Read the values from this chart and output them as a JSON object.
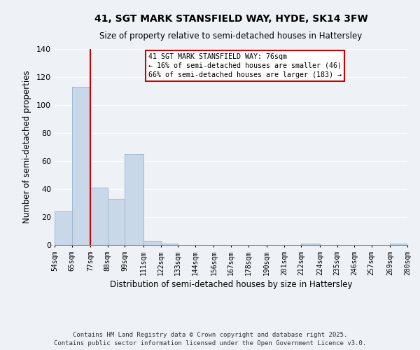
{
  "title": "41, SGT MARK STANSFIELD WAY, HYDE, SK14 3FW",
  "subtitle": "Size of property relative to semi-detached houses in Hattersley",
  "xlabel": "Distribution of semi-detached houses by size in Hattersley",
  "ylabel": "Number of semi-detached properties",
  "bins": [
    54,
    65,
    77,
    88,
    99,
    111,
    122,
    133,
    144,
    156,
    167,
    178,
    190,
    201,
    212,
    224,
    235,
    246,
    257,
    269,
    280
  ],
  "counts": [
    24,
    113,
    41,
    33,
    65,
    3,
    1,
    0,
    0,
    0,
    0,
    0,
    0,
    0,
    1,
    0,
    0,
    0,
    0,
    1
  ],
  "bar_color": "#c8d8e8",
  "bar_edge_color": "#a0b8d0",
  "property_line_x": 77,
  "annotation_title": "41 SGT MARK STANSFIELD WAY: 76sqm",
  "annotation_line1": "← 16% of semi-detached houses are smaller (46)",
  "annotation_line2": "66% of semi-detached houses are larger (183) →",
  "annotation_box_color": "#ffffff",
  "annotation_box_edge": "#cc0000",
  "vline_color": "#cc0000",
  "ylim": [
    0,
    140
  ],
  "yticks": [
    0,
    20,
    40,
    60,
    80,
    100,
    120,
    140
  ],
  "footer1": "Contains HM Land Registry data © Crown copyright and database right 2025.",
  "footer2": "Contains public sector information licensed under the Open Government Licence v3.0.",
  "bg_color": "#eef2f7"
}
